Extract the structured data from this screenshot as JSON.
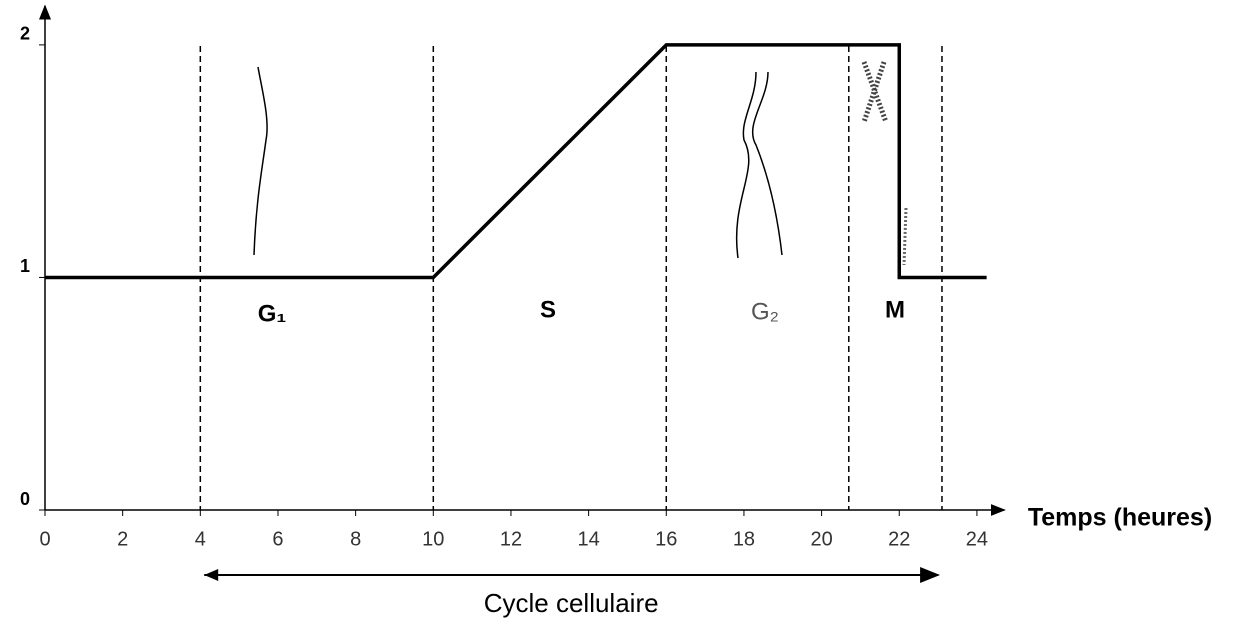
{
  "chart_data": {
    "type": "line",
    "x_label": "Temps (heures)",
    "xlim": [
      0,
      24.5
    ],
    "xticks": [
      0,
      2,
      4,
      6,
      8,
      10,
      12,
      14,
      16,
      18,
      20,
      22,
      24
    ],
    "ylim": [
      0,
      2.15
    ],
    "yticks": [
      0,
      1,
      2
    ],
    "series": [
      {
        "color": "#000000",
        "x": [
          0,
          10,
          16,
          22,
          22,
          24.25
        ],
        "values": [
          1,
          1,
          2,
          2,
          1,
          1
        ]
      }
    ],
    "phase_boundaries": [
      4,
      10,
      16,
      20.7,
      23.1
    ],
    "phases": [
      "G₁",
      "S",
      "G₂",
      "M"
    ],
    "cycle_arrow": {
      "label": "Cycle cellulaire",
      "range": [
        4.1,
        23
      ]
    }
  }
}
